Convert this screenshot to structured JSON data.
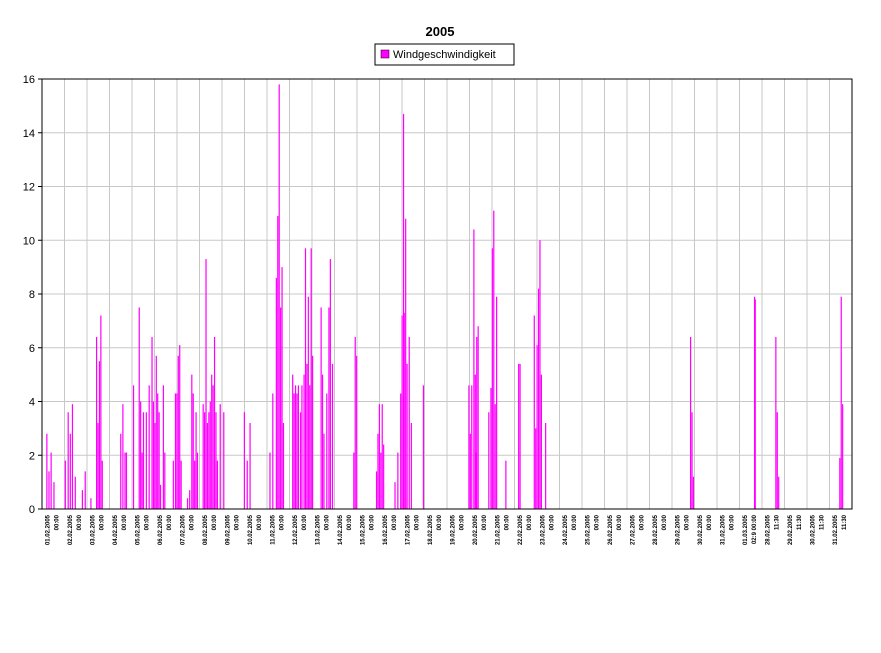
{
  "chart_data": {
    "type": "bar",
    "title": "2005",
    "xlabel": "",
    "ylabel": "",
    "ylim": [
      0,
      16
    ],
    "yticks": [
      "0",
      "2",
      "4",
      "6",
      "8",
      "10",
      "12",
      "14",
      "16"
    ],
    "grid": true,
    "legend_position": "top-center",
    "series": [
      {
        "name": "Windgeschwindigkeit",
        "color": "#ff00ff",
        "points": [
          [
            0.3,
            2.8
          ],
          [
            0.45,
            1.4
          ],
          [
            0.6,
            2.1
          ],
          [
            0.8,
            1.0
          ],
          [
            1.6,
            1.8
          ],
          [
            1.8,
            3.6
          ],
          [
            1.95,
            2.8
          ],
          [
            2.1,
            3.9
          ],
          [
            2.3,
            1.2
          ],
          [
            2.8,
            0.7
          ],
          [
            3.0,
            1.4
          ],
          [
            3.4,
            0.4
          ],
          [
            3.8,
            6.4
          ],
          [
            3.9,
            3.2
          ],
          [
            4.0,
            5.5
          ],
          [
            4.1,
            7.2
          ],
          [
            4.2,
            1.8
          ],
          [
            5.5,
            2.8
          ],
          [
            5.65,
            3.9
          ],
          [
            5.8,
            2.1
          ],
          [
            5.9,
            2.1
          ],
          [
            6.4,
            4.6
          ],
          [
            6.8,
            7.5
          ],
          [
            6.9,
            4.0
          ],
          [
            7.0,
            2.1
          ],
          [
            7.1,
            3.6
          ],
          [
            7.3,
            3.6
          ],
          [
            7.5,
            4.6
          ],
          [
            7.7,
            6.4
          ],
          [
            7.8,
            4.0
          ],
          [
            7.9,
            3.2
          ],
          [
            8.0,
            5.7
          ],
          [
            8.1,
            4.3
          ],
          [
            8.2,
            3.6
          ],
          [
            8.3,
            0.9
          ],
          [
            8.5,
            4.6
          ],
          [
            8.6,
            2.1
          ],
          [
            9.2,
            1.8
          ],
          [
            9.35,
            4.3
          ],
          [
            9.45,
            4.3
          ],
          [
            9.55,
            5.7
          ],
          [
            9.65,
            6.1
          ],
          [
            9.75,
            1.8
          ],
          [
            10.2,
            0.4
          ],
          [
            10.35,
            0.7
          ],
          [
            10.5,
            5.0
          ],
          [
            10.6,
            4.3
          ],
          [
            10.7,
            1.8
          ],
          [
            10.8,
            3.6
          ],
          [
            10.9,
            2.1
          ],
          [
            11.3,
            3.9
          ],
          [
            11.4,
            3.6
          ],
          [
            11.5,
            9.3
          ],
          [
            11.6,
            3.2
          ],
          [
            11.7,
            3.6
          ],
          [
            11.8,
            4.0
          ],
          [
            11.9,
            5.0
          ],
          [
            12.0,
            4.6
          ],
          [
            12.1,
            6.4
          ],
          [
            12.2,
            3.6
          ],
          [
            12.3,
            1.8
          ],
          [
            12.5,
            3.9
          ],
          [
            12.75,
            3.6
          ],
          [
            14.2,
            3.6
          ],
          [
            14.4,
            1.8
          ],
          [
            14.6,
            3.2
          ],
          [
            16.0,
            2.1
          ],
          [
            16.2,
            4.3
          ],
          [
            16.45,
            8.6
          ],
          [
            16.55,
            10.9
          ],
          [
            16.65,
            15.8
          ],
          [
            16.75,
            7.5
          ],
          [
            16.85,
            9.0
          ],
          [
            16.95,
            3.2
          ],
          [
            17.6,
            5.0
          ],
          [
            17.7,
            4.3
          ],
          [
            17.8,
            4.6
          ],
          [
            17.9,
            4.3
          ],
          [
            18.0,
            4.6
          ],
          [
            18.15,
            3.6
          ],
          [
            18.25,
            4.6
          ],
          [
            18.4,
            5.0
          ],
          [
            18.5,
            9.7
          ],
          [
            18.6,
            5.4
          ],
          [
            18.7,
            7.9
          ],
          [
            18.8,
            4.6
          ],
          [
            18.9,
            9.7
          ],
          [
            19.0,
            5.7
          ],
          [
            19.6,
            7.5
          ],
          [
            19.7,
            5.0
          ],
          [
            19.8,
            2.8
          ],
          [
            20.0,
            4.3
          ],
          [
            20.15,
            7.5
          ],
          [
            20.25,
            9.3
          ],
          [
            20.4,
            5.4
          ],
          [
            21.9,
            2.1
          ],
          [
            22.0,
            6.4
          ],
          [
            22.1,
            5.7
          ],
          [
            23.5,
            1.4
          ],
          [
            23.6,
            2.8
          ],
          [
            23.7,
            3.9
          ],
          [
            23.8,
            2.1
          ],
          [
            23.9,
            3.9
          ],
          [
            24.0,
            2.4
          ],
          [
            24.8,
            1.0
          ],
          [
            25.0,
            2.1
          ],
          [
            25.2,
            4.3
          ],
          [
            25.3,
            7.2
          ],
          [
            25.4,
            14.7
          ],
          [
            25.45,
            7.3
          ],
          [
            25.55,
            10.8
          ],
          [
            25.65,
            5.4
          ],
          [
            25.8,
            6.4
          ],
          [
            25.95,
            3.2
          ],
          [
            26.8,
            4.6
          ],
          [
            30.0,
            4.6
          ],
          [
            30.1,
            2.8
          ],
          [
            30.2,
            4.6
          ],
          [
            30.35,
            10.4
          ],
          [
            30.45,
            5.0
          ],
          [
            30.55,
            6.4
          ],
          [
            30.65,
            6.8
          ],
          [
            30.5,
            2.1
          ],
          [
            31.4,
            3.6
          ],
          [
            31.55,
            4.5
          ],
          [
            31.65,
            9.7
          ],
          [
            31.75,
            11.1
          ],
          [
            31.85,
            3.9
          ],
          [
            31.95,
            7.9
          ],
          [
            32.6,
            1.8
          ],
          [
            33.5,
            5.4
          ],
          [
            33.6,
            5.4
          ],
          [
            34.6,
            7.2
          ],
          [
            34.7,
            3.0
          ],
          [
            34.8,
            6.1
          ],
          [
            34.9,
            8.2
          ],
          [
            35.0,
            10.0
          ],
          [
            35.1,
            5.0
          ],
          [
            35.4,
            3.2
          ],
          [
            45.6,
            6.4
          ],
          [
            45.7,
            3.6
          ],
          [
            45.8,
            1.2
          ],
          [
            50.1,
            7.9
          ],
          [
            50.15,
            7.8
          ],
          [
            51.6,
            6.4
          ],
          [
            51.7,
            3.6
          ],
          [
            51.8,
            1.2
          ],
          [
            56.1,
            1.9
          ],
          [
            56.2,
            7.9
          ],
          [
            56.3,
            3.9
          ]
        ]
      }
    ],
    "xticks": [
      "01.02.2005 00:00",
      "02.02.2005 00:00",
      "03.02.2005 00:00",
      "04.02.2005 00:00",
      "05.02.2005 00:00",
      "06.02.2005 00:00",
      "07.02.2005 00:00",
      "08.02.2005 00:00",
      "09.02.2005 00:00",
      "10.02.2005 00:00",
      "11.02.2005 00:00",
      "12.02.2005 00:00",
      "13.02.2005 00:00",
      "14.02.2005 00:00",
      "15.02.2005 00:00",
      "16.02.2005 00:00",
      "17.02.2005 00:00",
      "18.02.2005 00:00",
      "19.02.2005 00:00",
      "20.02.2005 00:00",
      "21.02.2005 00:00",
      "22.02.2005 00:00",
      "23.02.2005 00:00",
      "24.02.2005 00:00",
      "25.02.2005 00:00",
      "26.02.2005 00:00",
      "27.02.2005 00:00",
      "28.02.2005 00:00",
      "29.02.2005 00:00",
      "30.02.2005 00:00",
      "31.02.2005 00:00",
      "01.03.2005 02:9 00:00",
      "28.02.2005 11:30",
      "29.02.2005 11:30",
      "30.02.2005 11:30",
      "31.02.2005 11:30"
    ],
    "x_min": 0,
    "x_max": 57
  }
}
